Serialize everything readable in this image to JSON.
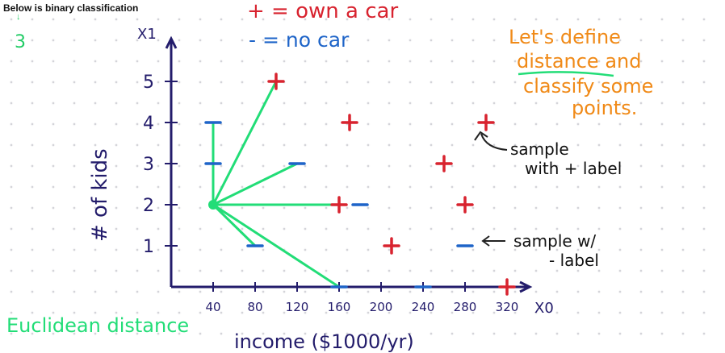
{
  "caption": "Below is binary classification",
  "slide_number": "3",
  "legend": {
    "positive": "+ = own a car",
    "negative": "- = no car"
  },
  "heading": {
    "line1": "Let's define",
    "line2": "distance and",
    "line3": "classify some",
    "line4": "points."
  },
  "notes": {
    "positive_line1": "sample",
    "positive_line2": "with + label",
    "negative_line1": "sample w/",
    "negative_line2": "- label",
    "bottom_left": "Euclidean distance"
  },
  "colors": {
    "axis": "#231c6b",
    "positive": "#d8232f",
    "negative": "#1e64c8",
    "green": "#22dd77",
    "orange": "#f08a18",
    "grid_dot": "#c9c9cf"
  },
  "chart_data": {
    "type": "scatter",
    "xlabel": "income ($1000/yr)",
    "ylabel": "# of kids",
    "x_axis_name": "X0",
    "y_axis_name": "X1",
    "x_ticks": [
      40,
      80,
      120,
      160,
      200,
      240,
      280,
      320
    ],
    "y_ticks": [
      1,
      2,
      3,
      4,
      5
    ],
    "xlim": [
      0,
      340
    ],
    "ylim": [
      0,
      5.8
    ],
    "grid": false,
    "positive_points": [
      [
        100,
        5
      ],
      [
        170,
        4
      ],
      [
        300,
        4
      ],
      [
        260,
        3
      ],
      [
        160,
        2
      ],
      [
        280,
        2
      ],
      [
        210,
        1
      ],
      [
        320,
        0
      ]
    ],
    "negative_points": [
      [
        40,
        4
      ],
      [
        40,
        3
      ],
      [
        120,
        3
      ],
      [
        180,
        2
      ],
      [
        80,
        1
      ],
      [
        280,
        1
      ],
      [
        160,
        0
      ],
      [
        240,
        0
      ]
    ],
    "query_point": [
      40,
      2
    ],
    "distance_lines_to": [
      [
        100,
        5
      ],
      [
        40,
        4
      ],
      [
        40,
        3
      ],
      [
        120,
        3
      ],
      [
        160,
        2
      ],
      [
        80,
        1
      ],
      [
        160,
        0
      ]
    ]
  }
}
